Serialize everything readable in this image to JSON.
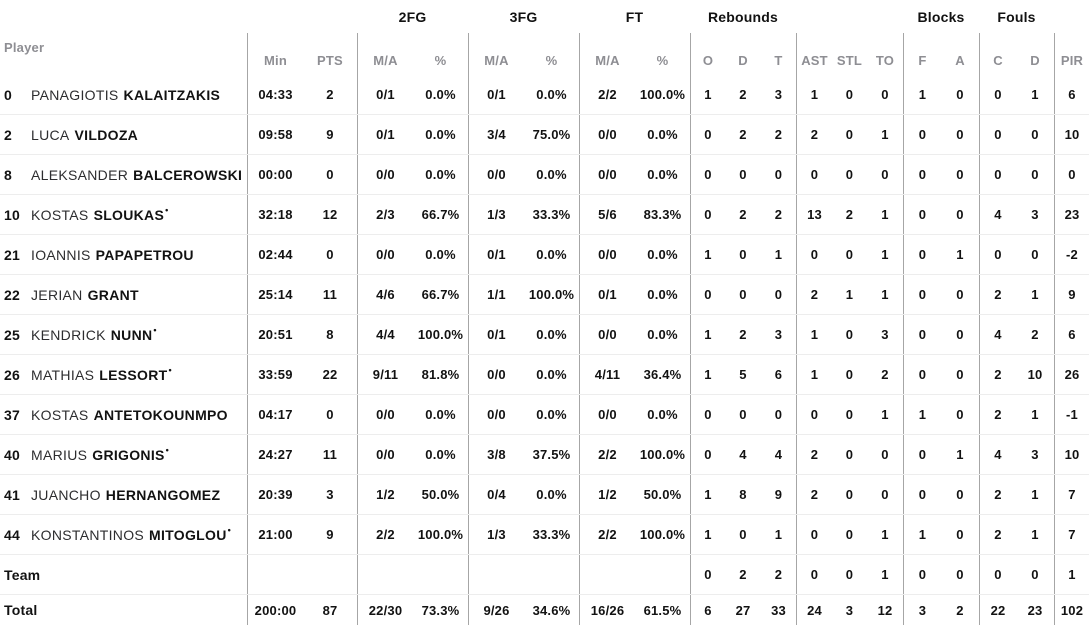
{
  "table": {
    "header": {
      "player": "Player",
      "groups": {
        "fg2": "2FG",
        "fg3": "3FG",
        "ft": "FT",
        "rebounds": "Rebounds",
        "blocks": "Blocks",
        "fouls": "Fouls"
      },
      "cols": {
        "min": "Min",
        "pts": "PTS",
        "ma": "M/A",
        "pct": "%",
        "o": "O",
        "d": "D",
        "t": "T",
        "ast": "AST",
        "stl": "STL",
        "to": "TO",
        "f": "F",
        "a": "A",
        "c": "C",
        "pir": "PIR"
      }
    },
    "player_rows": [
      {
        "num": "0",
        "first": "PANAGIOTIS",
        "last": "KALAITZAKIS",
        "star": "",
        "min": "04:33",
        "pts": "2",
        "fg2_ma": "0/1",
        "fg2_pct": "0.0%",
        "fg3_ma": "0/1",
        "fg3_pct": "0.0%",
        "ft_ma": "2/2",
        "ft_pct": "100.0%",
        "reb_o": "1",
        "reb_d": "2",
        "reb_t": "3",
        "ast": "1",
        "stl": "0",
        "to": "0",
        "blk_f": "1",
        "blk_a": "0",
        "foul_c": "0",
        "foul_d": "1",
        "pir": "6"
      },
      {
        "num": "2",
        "first": "LUCA",
        "last": "VILDOZA",
        "star": "",
        "min": "09:58",
        "pts": "9",
        "fg2_ma": "0/1",
        "fg2_pct": "0.0%",
        "fg3_ma": "3/4",
        "fg3_pct": "75.0%",
        "ft_ma": "0/0",
        "ft_pct": "0.0%",
        "reb_o": "0",
        "reb_d": "2",
        "reb_t": "2",
        "ast": "2",
        "stl": "0",
        "to": "1",
        "blk_f": "0",
        "blk_a": "0",
        "foul_c": "0",
        "foul_d": "0",
        "pir": "10"
      },
      {
        "num": "8",
        "first": "ALEKSANDER",
        "last": "BALCEROWSKI",
        "star": "",
        "min": "00:00",
        "pts": "0",
        "fg2_ma": "0/0",
        "fg2_pct": "0.0%",
        "fg3_ma": "0/0",
        "fg3_pct": "0.0%",
        "ft_ma": "0/0",
        "ft_pct": "0.0%",
        "reb_o": "0",
        "reb_d": "0",
        "reb_t": "0",
        "ast": "0",
        "stl": "0",
        "to": "0",
        "blk_f": "0",
        "blk_a": "0",
        "foul_c": "0",
        "foul_d": "0",
        "pir": "0"
      },
      {
        "num": "10",
        "first": "KOSTAS",
        "last": "SLOUKAS",
        "star": "•",
        "min": "32:18",
        "pts": "12",
        "fg2_ma": "2/3",
        "fg2_pct": "66.7%",
        "fg3_ma": "1/3",
        "fg3_pct": "33.3%",
        "ft_ma": "5/6",
        "ft_pct": "83.3%",
        "reb_o": "0",
        "reb_d": "2",
        "reb_t": "2",
        "ast": "13",
        "stl": "2",
        "to": "1",
        "blk_f": "0",
        "blk_a": "0",
        "foul_c": "4",
        "foul_d": "3",
        "pir": "23"
      },
      {
        "num": "21",
        "first": "IOANNIS",
        "last": "PAPAPETROU",
        "star": "",
        "min": "02:44",
        "pts": "0",
        "fg2_ma": "0/0",
        "fg2_pct": "0.0%",
        "fg3_ma": "0/1",
        "fg3_pct": "0.0%",
        "ft_ma": "0/0",
        "ft_pct": "0.0%",
        "reb_o": "1",
        "reb_d": "0",
        "reb_t": "1",
        "ast": "0",
        "stl": "0",
        "to": "1",
        "blk_f": "0",
        "blk_a": "1",
        "foul_c": "0",
        "foul_d": "0",
        "pir": "-2"
      },
      {
        "num": "22",
        "first": "JERIAN",
        "last": "GRANT",
        "star": "",
        "min": "25:14",
        "pts": "11",
        "fg2_ma": "4/6",
        "fg2_pct": "66.7%",
        "fg3_ma": "1/1",
        "fg3_pct": "100.0%",
        "ft_ma": "0/1",
        "ft_pct": "0.0%",
        "reb_o": "0",
        "reb_d": "0",
        "reb_t": "0",
        "ast": "2",
        "stl": "1",
        "to": "1",
        "blk_f": "0",
        "blk_a": "0",
        "foul_c": "2",
        "foul_d": "1",
        "pir": "9"
      },
      {
        "num": "25",
        "first": "KENDRICK",
        "last": "NUNN",
        "star": "•",
        "min": "20:51",
        "pts": "8",
        "fg2_ma": "4/4",
        "fg2_pct": "100.0%",
        "fg3_ma": "0/1",
        "fg3_pct": "0.0%",
        "ft_ma": "0/0",
        "ft_pct": "0.0%",
        "reb_o": "1",
        "reb_d": "2",
        "reb_t": "3",
        "ast": "1",
        "stl": "0",
        "to": "3",
        "blk_f": "0",
        "blk_a": "0",
        "foul_c": "4",
        "foul_d": "2",
        "pir": "6"
      },
      {
        "num": "26",
        "first": "MATHIAS",
        "last": "LESSORT",
        "star": "•",
        "min": "33:59",
        "pts": "22",
        "fg2_ma": "9/11",
        "fg2_pct": "81.8%",
        "fg3_ma": "0/0",
        "fg3_pct": "0.0%",
        "ft_ma": "4/11",
        "ft_pct": "36.4%",
        "reb_o": "1",
        "reb_d": "5",
        "reb_t": "6",
        "ast": "1",
        "stl": "0",
        "to": "2",
        "blk_f": "0",
        "blk_a": "0",
        "foul_c": "2",
        "foul_d": "10",
        "pir": "26"
      },
      {
        "num": "37",
        "first": "KOSTAS",
        "last": "ANTETOKOUNMPO",
        "star": "",
        "min": "04:17",
        "pts": "0",
        "fg2_ma": "0/0",
        "fg2_pct": "0.0%",
        "fg3_ma": "0/0",
        "fg3_pct": "0.0%",
        "ft_ma": "0/0",
        "ft_pct": "0.0%",
        "reb_o": "0",
        "reb_d": "0",
        "reb_t": "0",
        "ast": "0",
        "stl": "0",
        "to": "1",
        "blk_f": "1",
        "blk_a": "0",
        "foul_c": "2",
        "foul_d": "1",
        "pir": "-1"
      },
      {
        "num": "40",
        "first": "MARIUS",
        "last": "GRIGONIS",
        "star": "•",
        "min": "24:27",
        "pts": "11",
        "fg2_ma": "0/0",
        "fg2_pct": "0.0%",
        "fg3_ma": "3/8",
        "fg3_pct": "37.5%",
        "ft_ma": "2/2",
        "ft_pct": "100.0%",
        "reb_o": "0",
        "reb_d": "4",
        "reb_t": "4",
        "ast": "2",
        "stl": "0",
        "to": "0",
        "blk_f": "0",
        "blk_a": "1",
        "foul_c": "4",
        "foul_d": "3",
        "pir": "10"
      },
      {
        "num": "41",
        "first": "JUANCHO",
        "last": "HERNANGOMEZ",
        "star": "",
        "min": "20:39",
        "pts": "3",
        "fg2_ma": "1/2",
        "fg2_pct": "50.0%",
        "fg3_ma": "0/4",
        "fg3_pct": "0.0%",
        "ft_ma": "1/2",
        "ft_pct": "50.0%",
        "reb_o": "1",
        "reb_d": "8",
        "reb_t": "9",
        "ast": "2",
        "stl": "0",
        "to": "0",
        "blk_f": "0",
        "blk_a": "0",
        "foul_c": "2",
        "foul_d": "1",
        "pir": "7"
      },
      {
        "num": "44",
        "first": "KONSTANTINOS",
        "last": "MITOGLOU",
        "star": "•",
        "min": "21:00",
        "pts": "9",
        "fg2_ma": "2/2",
        "fg2_pct": "100.0%",
        "fg3_ma": "1/3",
        "fg3_pct": "33.3%",
        "ft_ma": "2/2",
        "ft_pct": "100.0%",
        "reb_o": "1",
        "reb_d": "0",
        "reb_t": "1",
        "ast": "0",
        "stl": "0",
        "to": "1",
        "blk_f": "1",
        "blk_a": "0",
        "foul_c": "2",
        "foul_d": "1",
        "pir": "7"
      }
    ],
    "summary_rows": [
      {
        "label": "Team",
        "min": "",
        "pts": "",
        "fg2_ma": "",
        "fg2_pct": "",
        "fg3_ma": "",
        "fg3_pct": "",
        "ft_ma": "",
        "ft_pct": "",
        "reb_o": "0",
        "reb_d": "2",
        "reb_t": "2",
        "ast": "0",
        "stl": "0",
        "to": "1",
        "blk_f": "0",
        "blk_a": "0",
        "foul_c": "0",
        "foul_d": "0",
        "pir": "1"
      },
      {
        "label": "Total",
        "min": "200:00",
        "pts": "87",
        "fg2_ma": "22/30",
        "fg2_pct": "73.3%",
        "fg3_ma": "9/26",
        "fg3_pct": "34.6%",
        "ft_ma": "16/26",
        "ft_pct": "61.5%",
        "reb_o": "6",
        "reb_d": "27",
        "reb_t": "33",
        "ast": "24",
        "stl": "3",
        "to": "12",
        "blk_f": "3",
        "blk_a": "2",
        "foul_c": "22",
        "foul_d": "23",
        "pir": "102"
      }
    ]
  }
}
